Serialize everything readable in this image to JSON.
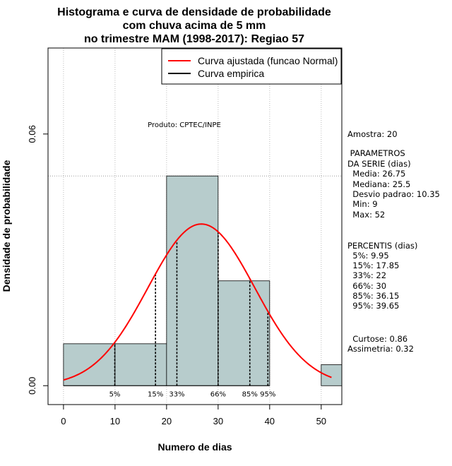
{
  "chart_data": {
    "type": "bar",
    "title_lines": [
      "Histograma e curva de densidade de probabilidade",
      "com chuva acima de 5 mm",
      "no trimestre MAM (1998-2017): Regiao 57"
    ],
    "xlabel": "Numero de dias",
    "ylabel": "Densidade de probabilidade",
    "xlim": [
      -3,
      54
    ],
    "ylim": [
      -0.0045,
      0.0805
    ],
    "x_ticks": [
      0,
      10,
      20,
      30,
      40,
      50
    ],
    "y_ticks": [
      0.0,
      0.06
    ],
    "y_tick_labels": [
      "0.00",
      "0.06"
    ],
    "bins": [
      {
        "start": 0,
        "end": 10,
        "density": 0.01
      },
      {
        "start": 10,
        "end": 20,
        "density": 0.01
      },
      {
        "start": 20,
        "end": 30,
        "density": 0.05
      },
      {
        "start": 30,
        "end": 40,
        "density": 0.025
      },
      {
        "start": 40,
        "end": 50,
        "density": 0.0
      },
      {
        "start": 50,
        "end": 54,
        "density": 0.005
      }
    ],
    "normal_fit": {
      "mean": 26.75,
      "sd": 10.35,
      "x_from": 0,
      "x_to": 52
    },
    "percentiles": [
      {
        "label": "5%",
        "value": 9.95
      },
      {
        "label": "15%",
        "value": 17.85
      },
      {
        "label": "33%",
        "value": 22
      },
      {
        "label": "66%",
        "value": 30
      },
      {
        "label": "85%",
        "value": 36.15
      },
      {
        "label": "95%",
        "value": 39.65
      }
    ],
    "hline_density": 0.05,
    "legend": [
      {
        "label": "Curva ajustada (funcao Normal)",
        "color": "#ff0000"
      },
      {
        "label": "Curva empirica",
        "color": "#000000"
      }
    ],
    "legend_position": "top-right",
    "annotation": "Produto: CPTEC/INPE",
    "bar_color": "#b7cccc",
    "curve_color": "#ff0000"
  },
  "stats_panel": {
    "lines": [
      "Amostra: 20",
      " PARAMETROS",
      "DA SERIE (dias)",
      "  Media: 26.75",
      "  Mediana: 25.5",
      "  Desvio padrao: 10.35",
      "  Min: 9",
      "  Max: 52",
      "PERCENTIS (dias)",
      "  5%: 9.95",
      "  15%: 17.85",
      "  33%: 22",
      "  66%: 30",
      "  85%: 36.15",
      "  95%: 39.65",
      "  Curtose: 0.86",
      "Assimetria: 0.32"
    ]
  }
}
